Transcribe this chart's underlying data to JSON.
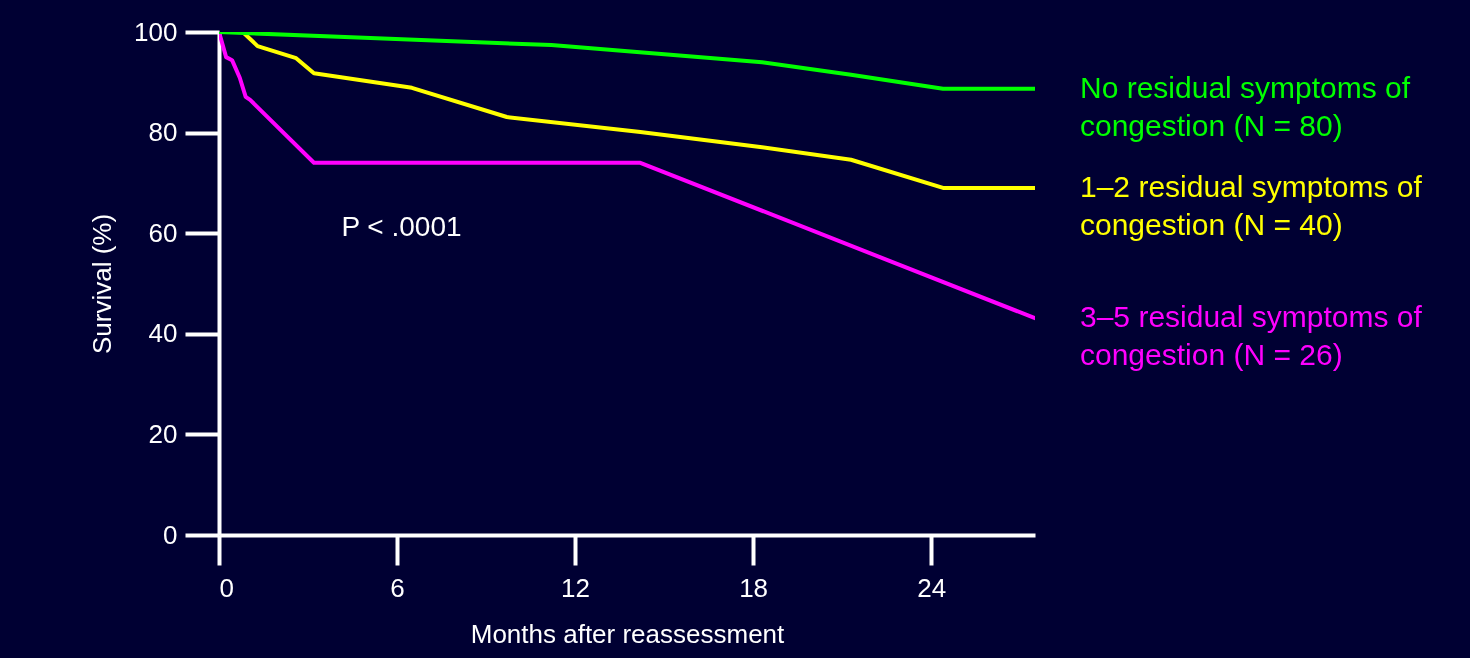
{
  "chart_data": {
    "type": "line",
    "xlabel": "Months after reassessment",
    "ylabel": "Survival (%)",
    "xlim": [
      0,
      27.5
    ],
    "xticks": [
      0,
      6,
      12,
      18,
      24
    ],
    "ylim": [
      0,
      100
    ],
    "yticks": [
      0,
      20,
      40,
      60,
      80,
      100
    ],
    "grid": false,
    "line_style": "solid",
    "marker": "none",
    "annotations": [
      "P < .0001"
    ],
    "series": [
      {
        "name": "No residual symptoms of congestion (N = 80)",
        "color": "#00ff00",
        "x": [
          0,
          5.1,
          11.2,
          18.3,
          21.3,
          24.4,
          27.5
        ],
        "values": [
          100,
          98.8,
          97.4,
          94,
          91.5,
          88.7,
          88.7
        ]
      },
      {
        "name": "1–2 residual symptoms of congestion (N = 40)",
        "color": "#ffff00",
        "x": [
          0,
          0.8,
          1.3,
          2.6,
          3.2,
          6.5,
          9.7,
          14.2,
          18.3,
          21.3,
          24.4,
          27.5
        ],
        "values": [
          100,
          100,
          97.2,
          94.8,
          91.8,
          88.9,
          83.1,
          80.1,
          77.1,
          74.6,
          69,
          69
        ]
      },
      {
        "name": "3–5 residual symptoms of congestion (N = 26)",
        "color": "#ff00ff",
        "x": [
          0,
          0.24,
          0.44,
          0.7,
          0.9,
          1.05,
          3.2,
          14.2,
          27.5
        ],
        "values": [
          100,
          95,
          94.4,
          90.9,
          87.1,
          86.5,
          74,
          74,
          43.1
        ]
      }
    ]
  }
}
